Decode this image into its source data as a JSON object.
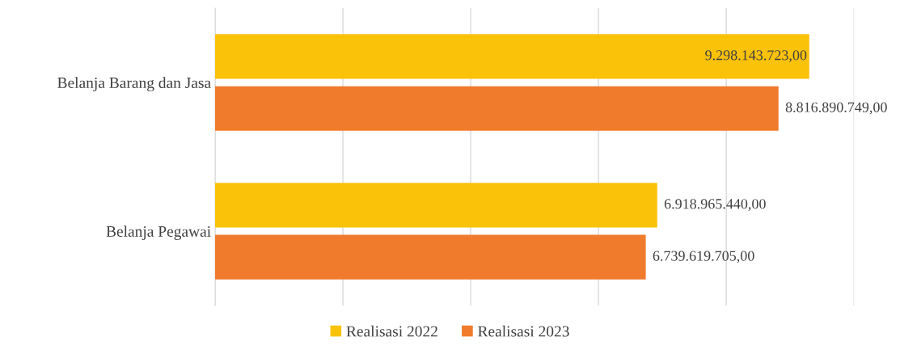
{
  "chart_data": {
    "type": "bar",
    "orientation": "horizontal",
    "categories": [
      "Belanja Barang dan Jasa",
      "Belanja Pegawai"
    ],
    "series": [
      {
        "name": "Realisasi 2022",
        "color": "#fbc20a",
        "values": [
          9298143723.0,
          6918965440.0
        ],
        "value_labels": [
          "9.298.143.723,00",
          "6.918.965.440,00"
        ]
      },
      {
        "name": "Realisasi 2023",
        "color": "#f07b2c",
        "values": [
          8816890749.0,
          6739619705.0
        ],
        "value_labels": [
          "8.816.890.749,00",
          "6.739.619.705,00"
        ]
      }
    ],
    "xlim": [
      0,
      10000000000
    ],
    "xticks": [
      {
        "value": 0,
        "label": null
      },
      {
        "value": 2000000000,
        "label": null
      },
      {
        "value": 4000000000,
        "label": null
      },
      {
        "value": 6000000000,
        "label": null
      },
      {
        "value": 8000000000,
        "label": null
      },
      {
        "value": 10000000000,
        "label": null
      }
    ],
    "grid": "x",
    "legend": "bottom"
  }
}
